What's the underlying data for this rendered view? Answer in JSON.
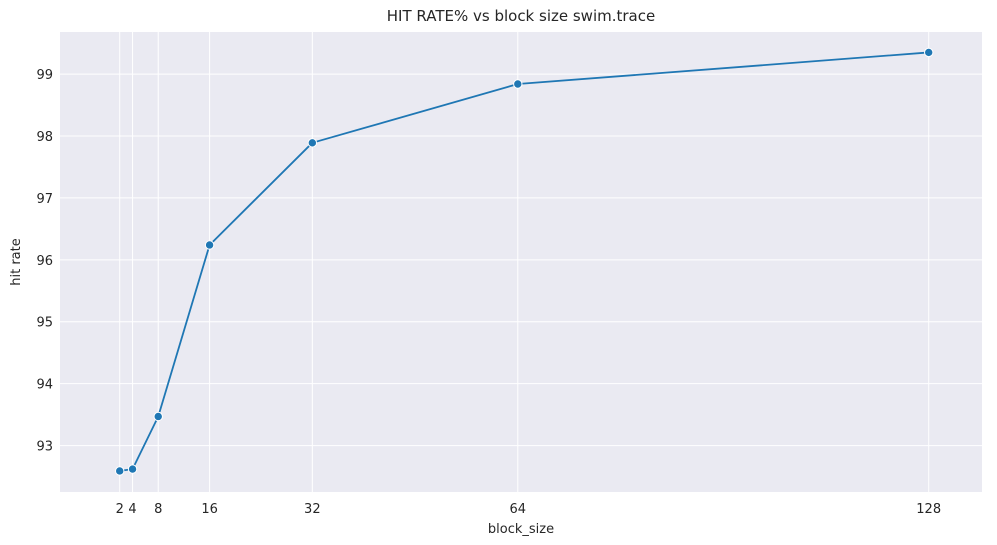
{
  "chart_data": {
    "type": "line",
    "title": "HIT RATE% vs block size swim.trace",
    "xlabel": "block_size",
    "ylabel": "hit rate",
    "x": [
      2,
      4,
      8,
      16,
      32,
      64,
      128
    ],
    "series": [
      {
        "values": [
          92.59,
          92.62,
          93.47,
          96.24,
          97.89,
          98.84,
          99.35
        ]
      }
    ],
    "xticks": [
      2,
      4,
      8,
      16,
      32,
      64,
      128
    ],
    "yticks": [
      93,
      94,
      95,
      96,
      97,
      98,
      99
    ],
    "xlim": [
      -7.3,
      136.3
    ],
    "ylim": [
      92.25,
      99.68
    ],
    "grid": true,
    "legend": "none",
    "colors": {
      "line": "#1f77b4",
      "plot_background": "#eaeaf2",
      "grid": "#ffffff"
    }
  }
}
